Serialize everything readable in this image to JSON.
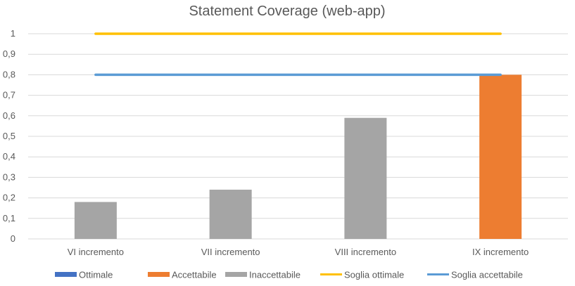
{
  "chart_data": {
    "type": "bar",
    "title": "Statement Coverage (web-app)",
    "categories": [
      "VI incremento",
      "VII incremento",
      "VIII incremento",
      "IX incremento"
    ],
    "values": [
      0.18,
      0.24,
      0.59,
      0.8
    ],
    "value_status": [
      "Inaccettabile",
      "Inaccettabile",
      "Inaccettabile",
      "Accettabile"
    ],
    "ylim": [
      0,
      1
    ],
    "yticks": [
      "0",
      "0,1",
      "0,2",
      "0,3",
      "0,4",
      "0,5",
      "0,6",
      "0,7",
      "0,8",
      "0,9",
      "1"
    ],
    "grid": true,
    "legend_position": "bottom",
    "series": [
      {
        "name": "Ottimale",
        "kind": "bar",
        "color": "#4472c4"
      },
      {
        "name": "Accettabile",
        "kind": "bar",
        "color": "#ed7d31"
      },
      {
        "name": "Inaccettabile",
        "kind": "bar",
        "color": "#a5a5a5"
      },
      {
        "name": "Soglia ottimale",
        "kind": "line",
        "color": "#ffc000",
        "value": 1
      },
      {
        "name": "Soglia accettabile",
        "kind": "line",
        "color": "#5b9bd5",
        "value": 0.8
      }
    ]
  }
}
